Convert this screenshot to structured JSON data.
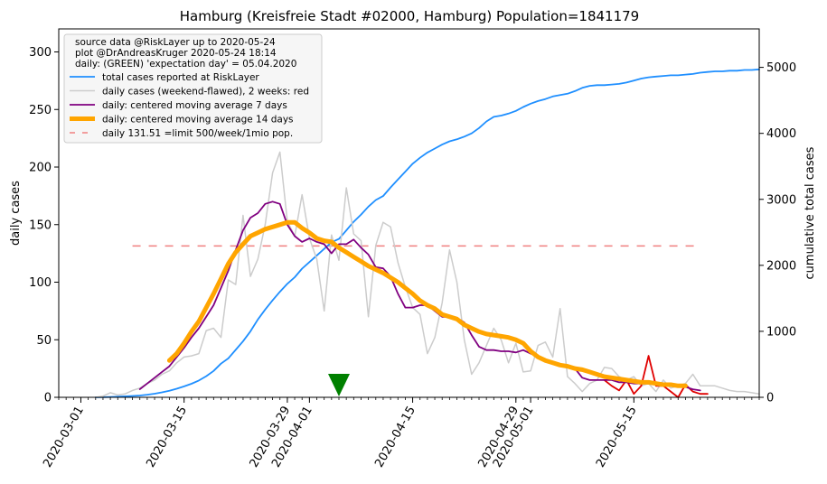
{
  "chart_data": {
    "type": "line",
    "title": "Hamburg (Kreisfreie Stadt #02000, Hamburg) Population=1841179",
    "ylabel_left": "daily cases",
    "ylabel_right": "cumulative total cases",
    "ylabel_left_color": "#800080",
    "ylabel_right_color": "#1f8fff",
    "x_axis": {
      "start": "2020-02-27",
      "end": "2020-06-01",
      "ticks": [
        {
          "date": "2020-03-01",
          "label": "2020-03-01"
        },
        {
          "date": "2020-03-15",
          "label": "2020-03-15"
        },
        {
          "date": "2020-03-29",
          "label": "2020-03-29"
        },
        {
          "date": "2020-04-01",
          "label": "2020-04-01"
        },
        {
          "date": "2020-04-15",
          "label": "2020-04-15"
        },
        {
          "date": "2020-04-29",
          "label": "2020-04-29"
        },
        {
          "date": "2020-05-01",
          "label": "2020-05-01"
        },
        {
          "date": "2020-05-15",
          "label": "2020-05-15"
        }
      ]
    },
    "y_left": {
      "min": 0,
      "max": 320,
      "ticks": [
        0,
        50,
        100,
        150,
        200,
        250,
        300
      ]
    },
    "y_right": {
      "min": 0,
      "max": 5583,
      "ticks": [
        0,
        1000,
        2000,
        3000,
        4000,
        5000
      ]
    },
    "legend": {
      "placement": "top-left",
      "notes": [
        "source data @RiskLayer up to 2020-05-24",
        "plot @DrAndreasKruger 2020-05-24 18:14",
        "daily: (GREEN) 'expectation day' = 05.04.2020"
      ],
      "entries": [
        {
          "label": "total cases reported at RiskLayer",
          "color": "#1f8fff",
          "style": "solid",
          "width": 1.8
        },
        {
          "label": "daily cases (weekend-flawed), 2 weeks: red",
          "color": "#cccccc",
          "style": "solid",
          "width": 1.5
        },
        {
          "label": "daily: centered moving average 7 days",
          "color": "#800080",
          "style": "solid",
          "width": 1.8
        },
        {
          "label": "daily: centered moving average 14 days",
          "color": "#ffa500",
          "style": "solid",
          "width": 5
        },
        {
          "label": "daily 131.51 =limit 500/week/1mio pop.",
          "color": "#f08080",
          "style": "dashed",
          "width": 1.5
        }
      ]
    },
    "limit_line": {
      "y": 131.51,
      "x_start": "2020-03-08",
      "x_end": "2020-05-24"
    },
    "expectation_day": {
      "date": "2020-04-05",
      "color": "#008000"
    },
    "series": [
      {
        "name": "total cases reported at RiskLayer",
        "axis": "right",
        "color": "#1f8fff",
        "x_start": "2020-03-03",
        "values": [
          0,
          2,
          5,
          10,
          15,
          20,
          28,
          40,
          55,
          75,
          100,
          130,
          165,
          205,
          255,
          320,
          400,
          510,
          590,
          720,
          850,
          1000,
          1180,
          1330,
          1470,
          1600,
          1720,
          1820,
          1950,
          2050,
          2150,
          2250,
          2350,
          2400,
          2530,
          2660,
          2770,
          2890,
          2990,
          3050,
          3180,
          3300,
          3420,
          3540,
          3630,
          3710,
          3770,
          3830,
          3880,
          3910,
          3950,
          4000,
          4080,
          4180,
          4250,
          4270,
          4300,
          4340,
          4400,
          4450,
          4490,
          4520,
          4560,
          4580,
          4600,
          4640,
          4690,
          4720,
          4730,
          4730,
          4740,
          4750,
          4770,
          4800,
          4830,
          4850,
          4860,
          4870,
          4880,
          4880,
          4890,
          4900,
          4920,
          4930,
          4940,
          4940,
          4950,
          4950,
          4960,
          4960,
          4970
        ]
      },
      {
        "name": "daily cases (weekend-flawed), 2 weeks: red",
        "axis": "left",
        "color": "#cccccc",
        "x_start": "2020-03-03",
        "values": [
          0,
          1,
          4,
          2,
          3,
          6,
          8,
          12,
          15,
          20,
          23,
          30,
          35,
          36,
          38,
          58,
          60,
          52,
          102,
          98,
          158,
          105,
          120,
          150,
          195,
          213,
          153,
          140,
          176,
          138,
          120,
          75,
          141,
          119,
          182,
          142,
          136,
          70,
          132,
          152,
          148,
          117,
          96,
          78,
          72,
          38,
          52,
          82,
          128,
          100,
          50,
          20,
          30,
          45,
          60,
          50,
          30,
          47,
          22,
          23,
          45,
          48,
          35,
          77,
          18,
          12,
          5,
          12,
          15,
          26,
          25,
          18,
          15,
          18,
          10,
          12,
          5,
          15,
          8,
          10,
          12,
          20,
          10,
          10,
          10,
          8,
          6,
          5,
          5,
          4,
          3
        ]
      },
      {
        "name": "daily cases, last 2 weeks",
        "axis": "left",
        "color": "#e00000",
        "x_start": "2020-05-11",
        "values": [
          15,
          10,
          6,
          15,
          3,
          10,
          36,
          10,
          10,
          5,
          0,
          11,
          5,
          3,
          3
        ]
      },
      {
        "name": "daily: centered moving average 7 days",
        "axis": "left",
        "color": "#800080",
        "x_start": "2020-03-09",
        "values": [
          7,
          12,
          17,
          22,
          27,
          35,
          43,
          52,
          60,
          70,
          80,
          95,
          110,
          128,
          145,
          156,
          160,
          168,
          170,
          168,
          150,
          140,
          135,
          138,
          135,
          133,
          125,
          133,
          133,
          137,
          130,
          124,
          113,
          112,
          105,
          90,
          78,
          78,
          80,
          80,
          75,
          70,
          70,
          69,
          65,
          54,
          44,
          41,
          41,
          40,
          40,
          39,
          41,
          38,
          36,
          33,
          30,
          28,
          27,
          25,
          17,
          15,
          15,
          15,
          15,
          13,
          13,
          12,
          12,
          12,
          11,
          11,
          10,
          9,
          9,
          7,
          6
        ]
      },
      {
        "name": "daily: centered moving average 14 days",
        "axis": "left",
        "color": "#ffa500",
        "x_start": "2020-03-13",
        "values": [
          32,
          38,
          47,
          57,
          66,
          78,
          90,
          103,
          116,
          126,
          133,
          140,
          143,
          146,
          148,
          150,
          152,
          152,
          147,
          143,
          138,
          136,
          135,
          130,
          126,
          122,
          118,
          114,
          111,
          108,
          104,
          100,
          95,
          90,
          84,
          80,
          77,
          72,
          70,
          68,
          63,
          60,
          57,
          55,
          54,
          53,
          52,
          50,
          47,
          40,
          35,
          32,
          30,
          28,
          27,
          25,
          24,
          22,
          20,
          18,
          17,
          16,
          15,
          14,
          13,
          13,
          12,
          11,
          11,
          10,
          10
        ]
      }
    ]
  }
}
